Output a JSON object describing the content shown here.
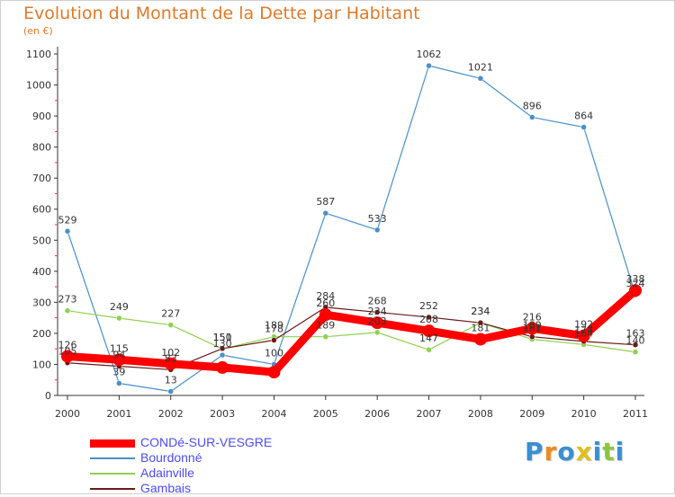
{
  "title": "Evolution du Montant de la Dette par Habitant",
  "subtitle": "(en €)",
  "logo": {
    "text": "Proxiti",
    "letter_colors": [
      "#3a8fd0",
      "#f08a1e",
      "#3a8fd0",
      "#e0c020",
      "#3a8fd0",
      "#8cc63f",
      "#3a8fd0"
    ]
  },
  "chart_data": {
    "type": "line",
    "x": [
      "2000",
      "2001",
      "2002",
      "2003",
      "2004",
      "2005",
      "2006",
      "2007",
      "2008",
      "2009",
      "2010",
      "2011"
    ],
    "y_ticks": [
      "0",
      "100",
      "200",
      "300",
      "400",
      "500",
      "600",
      "700",
      "800",
      "900",
      "1000",
      "1100"
    ],
    "ylim": [
      0,
      1100
    ],
    "grid": false,
    "legend_position": "bottom-left",
    "series": [
      {
        "name": "CONDé-SUR-VESGRE",
        "color": "#ff0000",
        "values": [
          126,
          115,
          102,
          90,
          75,
          260,
          234,
          208,
          181,
          216,
          192,
          338
        ],
        "labels": [
          "126",
          "115",
          "102",
          "",
          "",
          "260",
          "234",
          "208",
          "181",
          "216",
          "192",
          "338"
        ]
      },
      {
        "name": "Bourdonné",
        "color": "#4a90c8",
        "values": [
          529,
          39,
          13,
          130,
          100,
          587,
          533,
          1062,
          1021,
          896,
          864,
          324
        ],
        "labels": [
          "529",
          "39",
          "13",
          "130",
          "100",
          "587",
          "533",
          "1062",
          "1021",
          "896",
          "864",
          "324"
        ]
      },
      {
        "name": "Adainville",
        "color": "#8fd14f",
        "values": [
          273,
          249,
          227,
          150,
          189,
          189,
          203,
          147,
          234,
          181,
          164,
          140
        ],
        "labels": [
          "273",
          "249",
          "227",
          "150",
          "189",
          "189",
          "203",
          "147",
          "234",
          "181",
          "164",
          "140"
        ]
      },
      {
        "name": "Gambais",
        "color": "#6b1a1a",
        "values": [
          105,
          94,
          83,
          151,
          178,
          284,
          268,
          252,
          234,
          189,
          174,
          163
        ],
        "labels": [
          "105",
          "94",
          "83",
          "151",
          "178",
          "284",
          "268",
          "252",
          "234",
          "189",
          "174",
          "163"
        ]
      }
    ]
  }
}
